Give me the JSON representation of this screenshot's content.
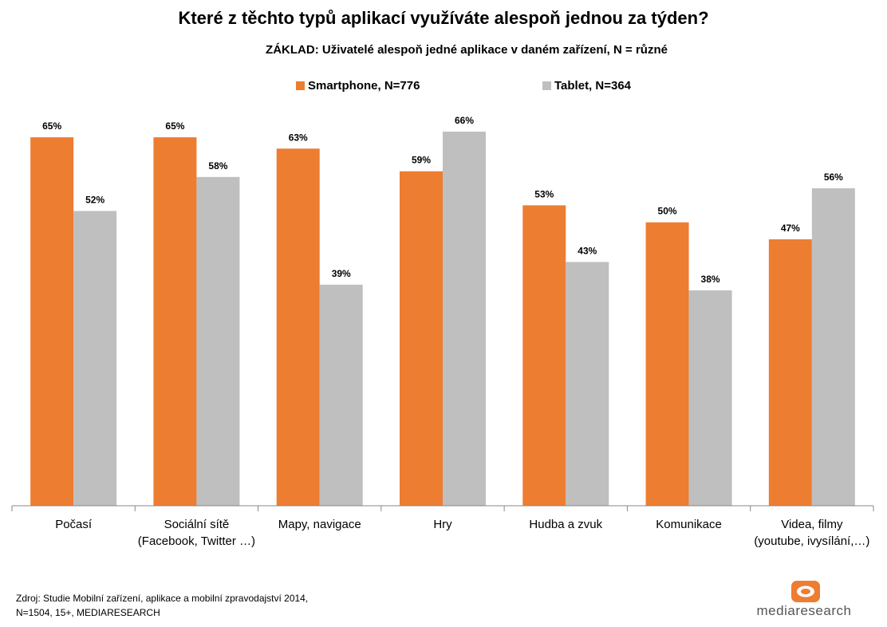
{
  "title": "Které z těchto typů aplikací využíváte alespoň jednou za týden?",
  "subtitle": "ZÁKLAD: Uživatelé alespoň jedné aplikace v daném zařízení, N = různé",
  "colors": {
    "smartphone": "#ED7D31",
    "tablet": "#BFBFBF",
    "axis": "#888888",
    "logo": "#ED7D31"
  },
  "chart_data": {
    "type": "bar",
    "categories": [
      [
        "Počasí"
      ],
      [
        "Sociální sítě",
        "(Facebook, Twitter …)"
      ],
      [
        "Mapy, navigace"
      ],
      [
        "Hry"
      ],
      [
        "Hudba a zvuk"
      ],
      [
        "Komunikace"
      ],
      [
        "Videa, filmy",
        "(youtube, ivysílání,…)"
      ]
    ],
    "series": [
      {
        "name": "Smartphone, N=776",
        "values": [
          65,
          65,
          63,
          59,
          53,
          50,
          47
        ],
        "labels": [
          "65%",
          "65%",
          "63%",
          "59%",
          "53%",
          "50%",
          "47%"
        ]
      },
      {
        "name": "Tablet, N=364",
        "values": [
          52,
          58,
          39,
          66,
          43,
          38,
          56
        ],
        "labels": [
          "52%",
          "58%",
          "39%",
          "66%",
          "43%",
          "38%",
          "56%"
        ]
      }
    ],
    "ylim": [
      0,
      66
    ],
    "grid": false,
    "legend_position": "top"
  },
  "source": {
    "line1": "Zdroj:  Studie Mobilní zařízení, aplikace a mobilní zpravodajství 2014,",
    "line2": "N=1504, 15+, MEDIARESEARCH"
  },
  "logo_text": "mediaresearch"
}
